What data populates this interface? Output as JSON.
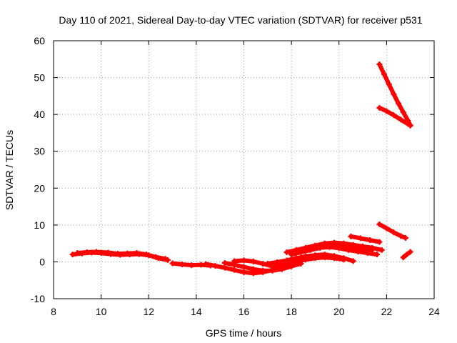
{
  "chart_data": {
    "type": "scatter",
    "title": "Day 110 of 2021, Sidereal Day-to-day VTEC variation (SDTVAR) for receiver p531",
    "xlabel": "GPS time / hours",
    "ylabel": "SDTVAR / TECUs",
    "xlim": [
      8,
      24
    ],
    "ylim": [
      -10,
      60
    ],
    "xticks": [
      "8",
      "10",
      "12",
      "14",
      "16",
      "18",
      "20",
      "22",
      "24"
    ],
    "yticks": [
      "-10",
      "0",
      "10",
      "20",
      "30",
      "40",
      "50",
      "60"
    ],
    "grid": true,
    "marker": "plus",
    "color": "#ff0000",
    "series": [
      {
        "segments": [
          {
            "x": [
              8.8,
              9.2,
              9.6,
              10.0,
              10.4,
              10.8,
              11.2,
              11.6,
              12.0,
              12.4,
              12.8
            ],
            "y": [
              2.0,
              2.3,
              2.5,
              2.4,
              2.1,
              1.9,
              2.0,
              2.1,
              1.8,
              1.0,
              0.5
            ]
          },
          {
            "x": [
              9.0,
              9.4,
              9.8,
              10.3,
              10.7,
              11.1,
              11.5,
              11.9,
              12.3,
              12.7
            ],
            "y": [
              2.4,
              2.6,
              2.7,
              2.5,
              2.2,
              2.3,
              2.4,
              2.0,
              1.3,
              0.8
            ]
          },
          {
            "x": [
              13.0,
              13.4,
              13.8,
              14.2,
              14.6
            ],
            "y": [
              -0.4,
              -0.7,
              -0.9,
              -0.8,
              -1.0
            ]
          },
          {
            "x": [
              14.4,
              14.8,
              15.2,
              15.6,
              16.0,
              16.4,
              16.8,
              17.2,
              17.6
            ],
            "y": [
              -0.6,
              -1.1,
              -1.6,
              -2.2,
              -2.8,
              -3.1,
              -2.8,
              -2.2,
              -1.6
            ]
          },
          {
            "x": [
              15.2,
              15.6,
              16.0,
              16.4,
              16.8,
              17.2,
              17.6,
              18.0,
              18.4
            ],
            "y": [
              -0.3,
              -0.8,
              -1.4,
              -2.0,
              -2.4,
              -2.4,
              -2.0,
              -1.2,
              -0.5
            ]
          },
          {
            "x": [
              15.6,
              16.0,
              16.4,
              16.8,
              17.2,
              17.6,
              18.0
            ],
            "y": [
              0.2,
              0.4,
              0.1,
              -0.5,
              -1.2,
              -1.7,
              -1.2
            ]
          },
          {
            "x": [
              17.0,
              17.4,
              17.8,
              18.2,
              18.6,
              19.0,
              19.4,
              19.8,
              20.2,
              20.6
            ],
            "y": [
              -0.5,
              -0.1,
              0.4,
              1.0,
              1.5,
              1.8,
              2.0,
              1.6,
              1.0,
              0.2
            ]
          },
          {
            "x": [
              17.4,
              17.8,
              18.2,
              18.6,
              19.0,
              19.4,
              19.8,
              20.2
            ],
            "y": [
              -1.0,
              -0.6,
              0.0,
              0.6,
              1.0,
              1.2,
              1.0,
              0.6
            ]
          },
          {
            "x": [
              17.8,
              18.2,
              18.6,
              19.0,
              19.4,
              19.8,
              20.2,
              20.6,
              21.0,
              21.4
            ],
            "y": [
              2.6,
              3.2,
              3.8,
              4.4,
              4.8,
              4.7,
              4.3,
              3.9,
              3.6,
              3.3
            ]
          },
          {
            "x": [
              18.0,
              18.4,
              18.8,
              19.2,
              19.6,
              20.0,
              20.4,
              20.8,
              21.2,
              21.6
            ],
            "y": [
              2.0,
              2.6,
              3.2,
              3.8,
              4.0,
              3.7,
              3.2,
              2.8,
              2.4,
              2.0
            ]
          },
          {
            "x": [
              18.6,
              19.0,
              19.4,
              19.8,
              20.2,
              20.6,
              21.0,
              21.4,
              21.8
            ],
            "y": [
              3.8,
              4.4,
              5.0,
              5.2,
              5.0,
              4.6,
              4.2,
              3.8,
              3.2
            ]
          },
          {
            "x": [
              20.5,
              20.9,
              21.3,
              21.7
            ],
            "y": [
              6.9,
              6.4,
              5.9,
              5.4
            ]
          },
          {
            "x": [
              21.7,
              22.0,
              22.3,
              22.6,
              22.8
            ],
            "y": [
              10.2,
              9.1,
              8.0,
              7.0,
              6.5
            ]
          },
          {
            "x": [
              22.7,
              22.85,
              23.0
            ],
            "y": [
              1.2,
              2.0,
              2.7
            ]
          },
          {
            "x": [
              21.7,
              21.9,
              22.1,
              22.3,
              22.5,
              22.7,
              22.9,
              23.0
            ],
            "y": [
              53.6,
              50.9,
              48.2,
              45.5,
              43.0,
              40.6,
              38.3,
              37.0
            ]
          },
          {
            "x": [
              21.7,
              22.0,
              22.3,
              22.6,
              22.9,
              23.0
            ],
            "y": [
              41.8,
              40.9,
              39.8,
              38.6,
              37.4,
              37.0
            ]
          }
        ]
      }
    ]
  }
}
